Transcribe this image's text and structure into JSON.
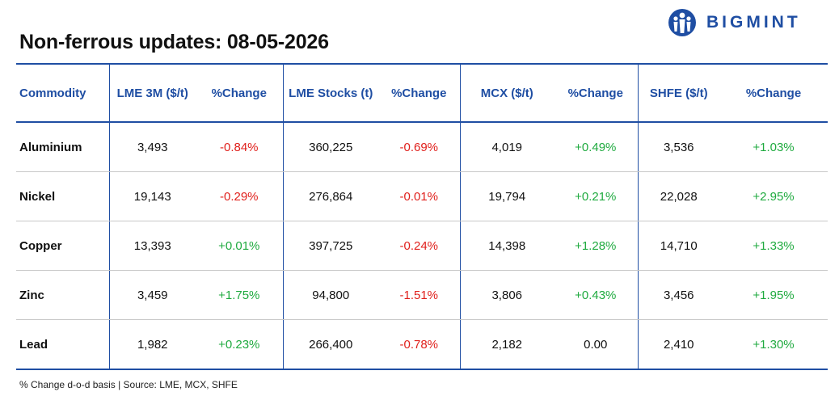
{
  "title": "Non-ferrous updates: 08-05-2026",
  "logo": {
    "text": "BIGMINT",
    "icon": "bigmint-logo-icon",
    "color": "#1f4ea3"
  },
  "colors": {
    "accent": "#1f4ea3",
    "negative": "#e0201c",
    "positive": "#1faa3f"
  },
  "table": {
    "headers": [
      "Commodity",
      "LME 3M ($/t)",
      "%Change",
      "LME Stocks (t)",
      "%Change",
      "MCX ($/t)",
      "%Change",
      "SHFE ($/t)",
      "%Change"
    ],
    "rows": [
      [
        "Aluminium",
        "3,493",
        "-0.84%",
        "360,225",
        "-0.69%",
        "4,019",
        "+0.49%",
        "3,536",
        "+1.03%"
      ],
      [
        "Nickel",
        "19,143",
        "-0.29%",
        "276,864",
        "-0.01%",
        "19,794",
        "+0.21%",
        "22,028",
        "+2.95%"
      ],
      [
        "Copper",
        "13,393",
        "+0.01%",
        "397,725",
        "-0.24%",
        "14,398",
        "+1.28%",
        "14,710",
        "+1.33%"
      ],
      [
        "Zinc",
        "3,459",
        "+1.75%",
        "94,800",
        "-1.51%",
        "3,806",
        "+0.43%",
        "3,456",
        "+1.95%"
      ],
      [
        "Lead",
        "1,982",
        "+0.23%",
        "266,400",
        "-0.78%",
        "2,182",
        "0.00",
        "2,410",
        "+1.30%"
      ]
    ]
  },
  "footnote": "% Change d-o-d basis | Source: LME, MCX, SHFE"
}
